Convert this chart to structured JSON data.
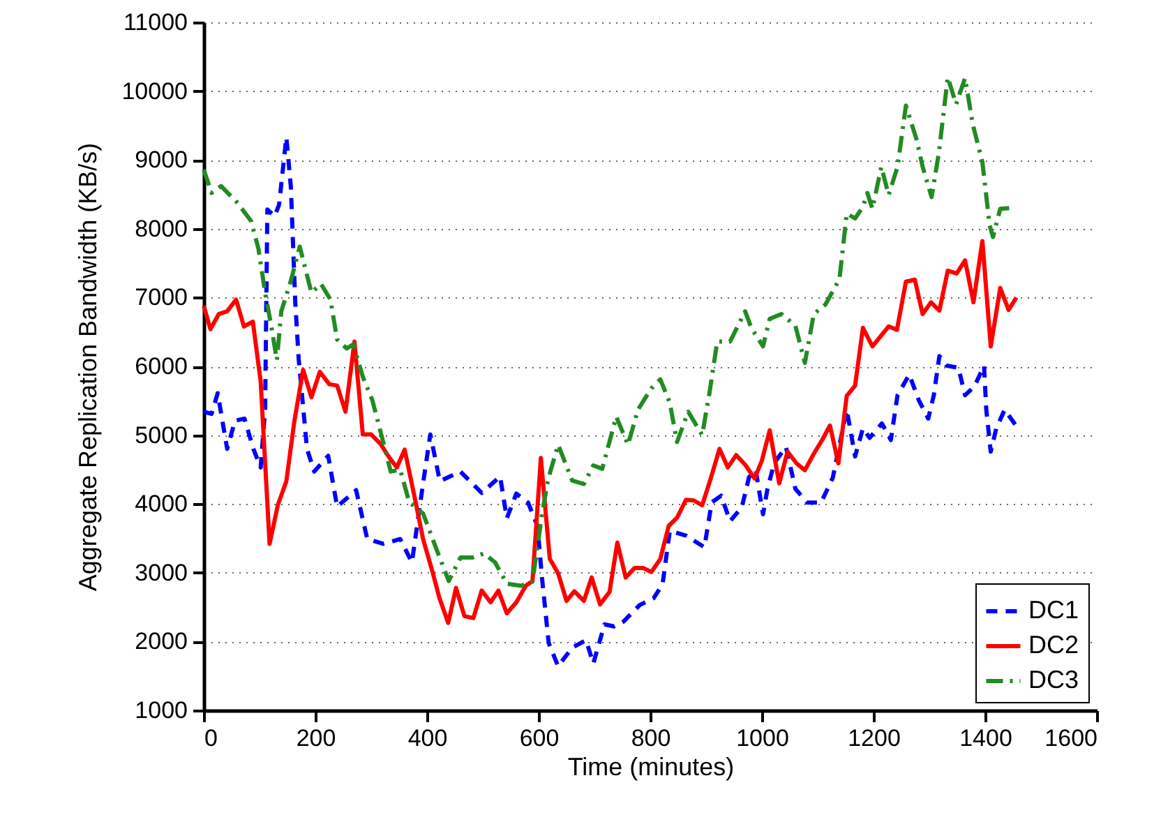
{
  "chart_data": {
    "type": "line",
    "xlabel": "Time (minutes)",
    "ylabel": "Aggregate Replication Bandwidth (KB/s)",
    "xlim": [
      0,
      1600
    ],
    "xticks": [
      0,
      200,
      400,
      600,
      800,
      1000,
      1200,
      1400,
      1600
    ],
    "ylim": [
      1000,
      11000
    ],
    "yticks": [
      1000,
      2000,
      3000,
      4000,
      5000,
      6000,
      7000,
      8000,
      9000,
      10000,
      11000
    ],
    "grid": "y",
    "legend": "bottom right",
    "series": [
      {
        "name": "DC1",
        "color": "#0000ff",
        "line_style": "dashed",
        "x": [
          0,
          14,
          25,
          42,
          56,
          73,
          89,
          102,
          110,
          114,
          127,
          135,
          148,
          156,
          164,
          170,
          185,
          198,
          223,
          239,
          273,
          293,
          322,
          352,
          373,
          393,
          406,
          423,
          460,
          477,
          498,
          531,
          543,
          560,
          581,
          598,
          606,
          618,
          635,
          660,
          685,
          698,
          718,
          735,
          752,
          781,
          806,
          822,
          835,
          864,
          897,
          910,
          927,
          943,
          964,
          977,
          989,
          1002,
          1010,
          1022,
          1043,
          1060,
          1081,
          1106,
          1127,
          1152,
          1167,
          1181,
          1193,
          1215,
          1231,
          1243,
          1264,
          1281,
          1298,
          1308,
          1318,
          1331,
          1352,
          1364,
          1381,
          1398,
          1402,
          1410,
          1420,
          1435,
          1456
        ],
        "values": [
          5340,
          5310,
          5610,
          4800,
          5210,
          5240,
          4800,
          4530,
          5380,
          8280,
          8180,
          8350,
          9330,
          8620,
          6930,
          6120,
          4800,
          4470,
          4700,
          3960,
          4200,
          3490,
          3420,
          3490,
          3150,
          4300,
          5010,
          4330,
          4470,
          4330,
          4160,
          4400,
          3790,
          4150,
          4020,
          3680,
          2930,
          1980,
          1640,
          1910,
          2020,
          1680,
          2250,
          2220,
          2290,
          2530,
          2630,
          2830,
          3610,
          3540,
          3370,
          4020,
          4120,
          3750,
          3950,
          4390,
          4490,
          3850,
          4220,
          4590,
          4830,
          4220,
          4020,
          4020,
          4380,
          5370,
          4690,
          5100,
          4960,
          5170,
          4930,
          5580,
          5880,
          5510,
          5240,
          5580,
          6150,
          6010,
          5980,
          5580,
          5710,
          6010,
          5370,
          4760,
          5100,
          5370,
          5130
        ]
      },
      {
        "name": "DC2",
        "color": "#ff0000",
        "line_style": "solid",
        "x": [
          0,
          12,
          27,
          42,
          58,
          72,
          88,
          102,
          118,
          133,
          148,
          162,
          178,
          193,
          208,
          225,
          239,
          254,
          270,
          285,
          300,
          317,
          331,
          346,
          360,
          377,
          393,
          410,
          422,
          438,
          452,
          467,
          483,
          498,
          514,
          528,
          543,
          560,
          577,
          589,
          604,
          620,
          635,
          650,
          664,
          681,
          695,
          710,
          727,
          741,
          756,
          772,
          787,
          802,
          818,
          833,
          848,
          864,
          878,
          893,
          908,
          924,
          939,
          954,
          970,
          987,
          1000,
          1014,
          1031,
          1046,
          1062,
          1077,
          1093,
          1108,
          1122,
          1137,
          1152,
          1167,
          1181,
          1198,
          1227,
          1242,
          1258,
          1274,
          1288,
          1303,
          1318,
          1333,
          1349,
          1364,
          1379,
          1395,
          1410,
          1427,
          1442,
          1456
        ],
        "values": [
          6880,
          6540,
          6760,
          6800,
          6970,
          6580,
          6650,
          5780,
          3420,
          3990,
          4330,
          5180,
          5950,
          5550,
          5920,
          5740,
          5720,
          5340,
          6360,
          5010,
          5010,
          4870,
          4690,
          4530,
          4790,
          4130,
          3490,
          3010,
          2640,
          2270,
          2780,
          2370,
          2340,
          2740,
          2570,
          2740,
          2410,
          2570,
          2810,
          2880,
          4670,
          3200,
          2990,
          2590,
          2730,
          2590,
          2930,
          2540,
          2720,
          3440,
          2930,
          3070,
          3070,
          3010,
          3200,
          3680,
          3800,
          4060,
          4050,
          3980,
          4360,
          4800,
          4530,
          4710,
          4570,
          4370,
          4630,
          5070,
          4300,
          4760,
          4590,
          4490,
          4730,
          4930,
          5140,
          4590,
          5570,
          5720,
          6560,
          6290,
          6580,
          6530,
          7230,
          7260,
          6760,
          6930,
          6810,
          7390,
          7350,
          7540,
          6930,
          7820,
          6290,
          7140,
          6820,
          7000
        ]
      },
      {
        "name": "DC3",
        "color": "#228b22",
        "line_style": "dashdot",
        "x": [
          0,
          14,
          31,
          60,
          85,
          98,
          110,
          120,
          131,
          139,
          156,
          172,
          193,
          210,
          227,
          239,
          256,
          268,
          285,
          302,
          318,
          335,
          352,
          368,
          393,
          418,
          439,
          460,
          481,
          502,
          522,
          543,
          568,
          589,
          606,
          617,
          635,
          660,
          681,
          698,
          714,
          739,
          760,
          778,
          802,
          818,
          835,
          848,
          868,
          893,
          906,
          920,
          943,
          970,
          981,
          1002,
          1014,
          1035,
          1060,
          1077,
          1093,
          1114,
          1139,
          1152,
          1167,
          1181,
          1189,
          1198,
          1214,
          1227,
          1243,
          1258,
          1277,
          1288,
          1304,
          1317,
          1333,
          1348,
          1364,
          1378,
          1395,
          1408,
          1414,
          1427,
          1443
        ],
        "values": [
          8860,
          8520,
          8620,
          8380,
          8110,
          7710,
          7070,
          6630,
          6090,
          6800,
          7240,
          7740,
          7070,
          7200,
          6970,
          6390,
          6260,
          6320,
          5850,
          5510,
          5010,
          4470,
          4500,
          4030,
          3860,
          3320,
          2880,
          3220,
          3220,
          3280,
          3150,
          2840,
          2810,
          2870,
          3850,
          4360,
          4860,
          4340,
          4290,
          4560,
          4510,
          5270,
          4860,
          5370,
          5680,
          5810,
          5470,
          4900,
          5340,
          5000,
          5610,
          6360,
          6360,
          6800,
          6560,
          6290,
          6690,
          6760,
          6590,
          6050,
          6760,
          6900,
          7270,
          8220,
          8150,
          8320,
          8520,
          8290,
          8900,
          8490,
          8900,
          9790,
          9300,
          8900,
          8460,
          9100,
          10200,
          9810,
          10190,
          9510,
          8970,
          8050,
          7880,
          8290,
          8300
        ]
      }
    ]
  }
}
